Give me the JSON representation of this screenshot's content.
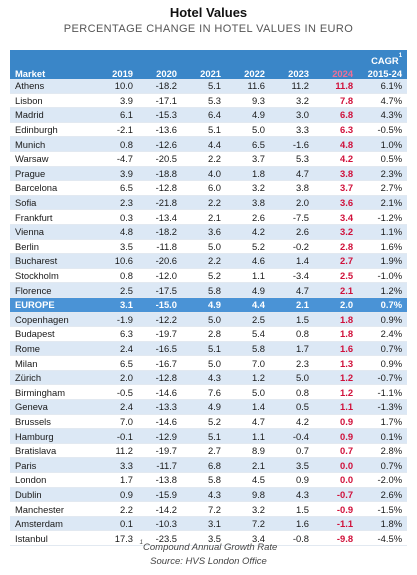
{
  "title": "Hotel Values",
  "subtitle": "PERCENTAGE CHANGE IN HOTEL VALUES IN EURO",
  "table": {
    "header_cagr_top": "CAGR",
    "header_cagr_sup": "1",
    "headers": [
      "Market",
      "2019",
      "2020",
      "2021",
      "2022",
      "2023",
      "2024",
      "2015-24"
    ],
    "rows": [
      [
        "Athens",
        "10.0",
        "-18.2",
        "5.1",
        "11.6",
        "11.2",
        "11.8",
        "6.1%"
      ],
      [
        "Lisbon",
        "3.9",
        "-17.1",
        "5.3",
        "9.3",
        "3.2",
        "7.8",
        "4.7%"
      ],
      [
        "Madrid",
        "6.1",
        "-15.3",
        "6.4",
        "4.9",
        "3.0",
        "6.8",
        "4.3%"
      ],
      [
        "Edinburgh",
        "-2.1",
        "-13.6",
        "5.1",
        "5.0",
        "3.3",
        "6.3",
        "-0.5%"
      ],
      [
        "Munich",
        "0.8",
        "-12.6",
        "4.4",
        "6.5",
        "-1.6",
        "4.8",
        "1.0%"
      ],
      [
        "Warsaw",
        "-4.7",
        "-20.5",
        "2.2",
        "3.7",
        "5.3",
        "4.2",
        "0.5%"
      ],
      [
        "Prague",
        "3.9",
        "-18.8",
        "4.0",
        "1.8",
        "4.7",
        "3.8",
        "2.3%"
      ],
      [
        "Barcelona",
        "6.5",
        "-12.8",
        "6.0",
        "3.2",
        "3.8",
        "3.7",
        "2.7%"
      ],
      [
        "Sofia",
        "2.3",
        "-21.8",
        "2.2",
        "3.8",
        "2.0",
        "3.6",
        "2.1%"
      ],
      [
        "Frankfurt",
        "0.3",
        "-13.4",
        "2.1",
        "2.6",
        "-7.5",
        "3.4",
        "-1.2%"
      ],
      [
        "Vienna",
        "4.8",
        "-18.2",
        "3.6",
        "4.2",
        "2.6",
        "3.2",
        "1.1%"
      ],
      [
        "Berlin",
        "3.5",
        "-11.8",
        "5.0",
        "5.2",
        "-0.2",
        "2.8",
        "1.6%"
      ],
      [
        "Bucharest",
        "10.6",
        "-20.6",
        "2.2",
        "4.6",
        "1.4",
        "2.7",
        "1.9%"
      ],
      [
        "Stockholm",
        "0.8",
        "-12.0",
        "5.2",
        "1.1",
        "-3.4",
        "2.5",
        "-1.0%"
      ],
      [
        "Florence",
        "2.5",
        "-17.5",
        "5.8",
        "4.9",
        "4.7",
        "2.1",
        "1.2%"
      ],
      [
        "EUROPE",
        "3.1",
        "-15.0",
        "4.9",
        "4.4",
        "2.1",
        "2.0",
        "0.7%"
      ],
      [
        "Copenhagen",
        "-1.9",
        "-12.2",
        "5.0",
        "2.5",
        "1.5",
        "1.8",
        "0.9%"
      ],
      [
        "Budapest",
        "6.3",
        "-19.7",
        "2.8",
        "5.4",
        "0.8",
        "1.8",
        "2.4%"
      ],
      [
        "Rome",
        "2.4",
        "-16.5",
        "5.1",
        "5.8",
        "1.7",
        "1.6",
        "0.7%"
      ],
      [
        "Milan",
        "6.5",
        "-16.7",
        "5.0",
        "7.0",
        "2.3",
        "1.3",
        "0.9%"
      ],
      [
        "Zürich",
        "2.0",
        "-12.8",
        "4.3",
        "1.2",
        "5.0",
        "1.2",
        "-0.7%"
      ],
      [
        "Birmingham",
        "-0.5",
        "-14.6",
        "7.6",
        "5.0",
        "0.8",
        "1.2",
        "-1.1%"
      ],
      [
        "Geneva",
        "2.4",
        "-13.3",
        "4.9",
        "1.4",
        "0.5",
        "1.1",
        "-1.3%"
      ],
      [
        "Brussels",
        "7.0",
        "-14.6",
        "5.2",
        "4.7",
        "4.2",
        "0.9",
        "1.7%"
      ],
      [
        "Hamburg",
        "-0.1",
        "-12.9",
        "5.1",
        "1.1",
        "-0.4",
        "0.9",
        "0.1%"
      ],
      [
        "Bratislava",
        "11.2",
        "-19.7",
        "2.7",
        "8.9",
        "0.7",
        "0.7",
        "2.8%"
      ],
      [
        "Paris",
        "3.3",
        "-11.7",
        "6.8",
        "2.1",
        "3.5",
        "0.0",
        "0.7%"
      ],
      [
        "London",
        "1.7",
        "-13.8",
        "5.8",
        "4.5",
        "0.9",
        "0.0",
        "-2.0%"
      ],
      [
        "Dublin",
        "0.9",
        "-15.9",
        "4.3",
        "9.8",
        "4.3",
        "-0.7",
        "2.6%"
      ],
      [
        "Manchester",
        "2.2",
        "-14.2",
        "7.2",
        "3.2",
        "1.5",
        "-0.9",
        "-1.5%"
      ],
      [
        "Amsterdam",
        "0.1",
        "-10.3",
        "3.1",
        "7.2",
        "1.6",
        "-1.1",
        "1.8%"
      ],
      [
        "Istanbul",
        "17.3",
        "-23.5",
        "3.5",
        "3.4",
        "-0.8",
        "-9.8",
        "-4.5%"
      ]
    ]
  },
  "footnote": "Compound Annual Growth Rate",
  "footnote_mark": "1",
  "source": "Source: HVS London Office",
  "colors": {
    "header_bg": "#3a86c8",
    "band_light": "#dce8f5",
    "europe_row": "#4a93d6",
    "highlight_red": "#d0103a",
    "year_2024_header": "#f06f96"
  }
}
